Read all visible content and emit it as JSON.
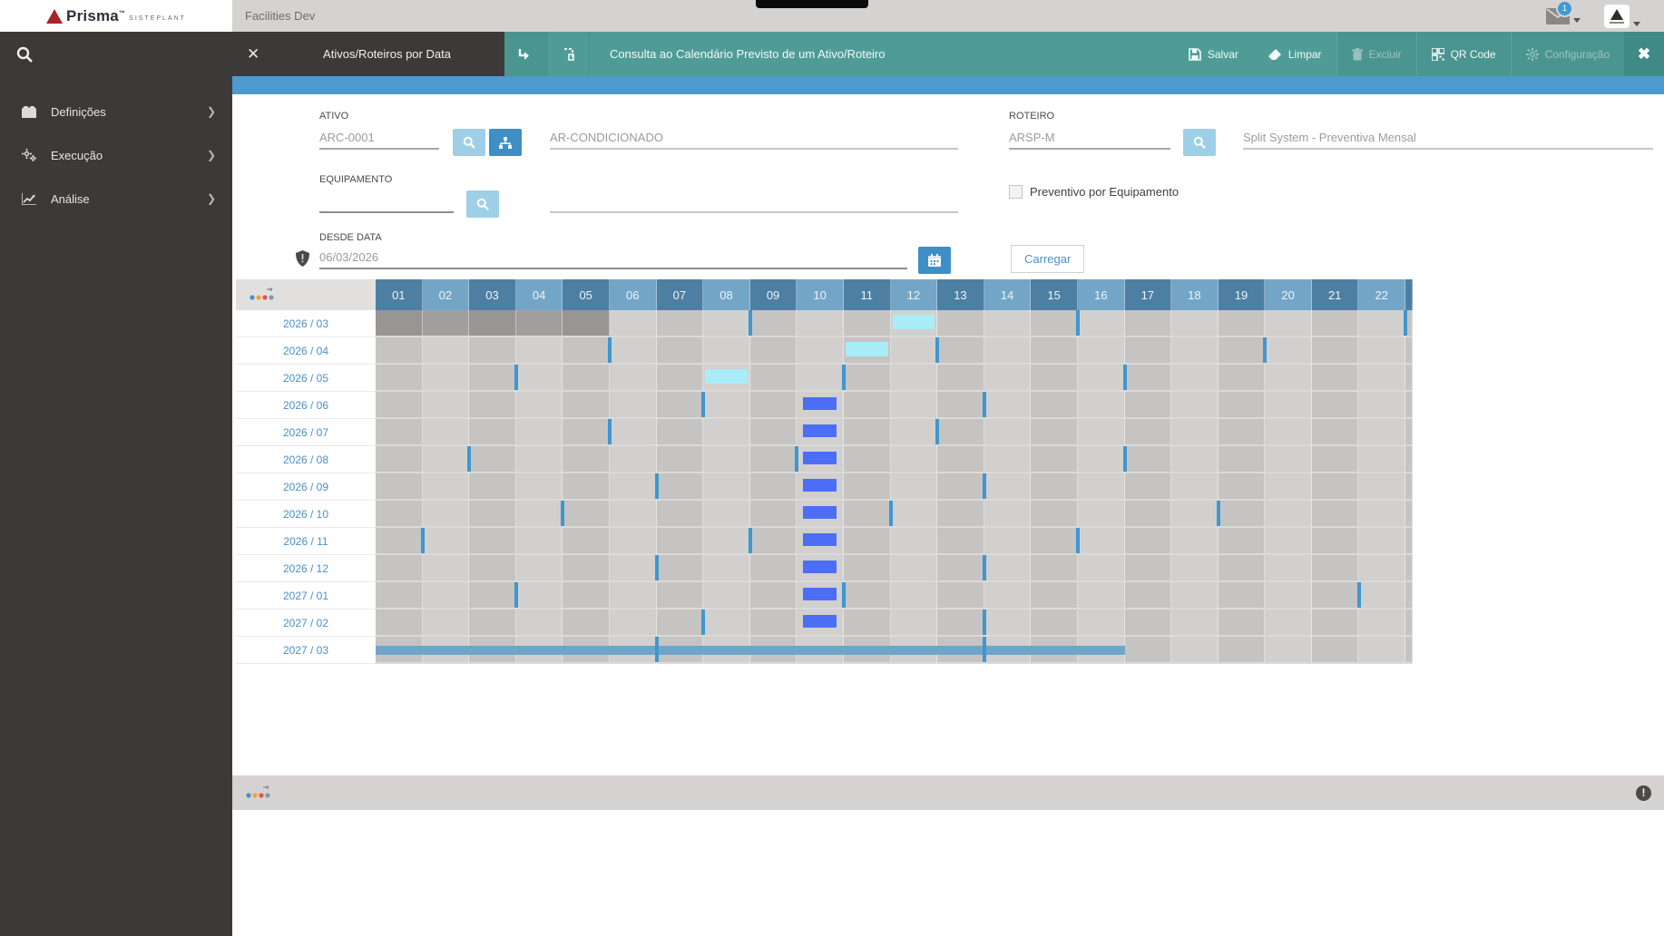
{
  "topbar": {
    "app_label": "Facilities Dev",
    "mail_badge": "1"
  },
  "logo": {
    "brand": "Prisma",
    "tm": "™",
    "subbrand": "SISTEPLANT"
  },
  "sidebar": {
    "items": [
      {
        "label": "Definições",
        "icon": "modules-icon"
      },
      {
        "label": "Execução",
        "icon": "gears-icon"
      },
      {
        "label": "Análise",
        "icon": "chart-line-icon"
      }
    ]
  },
  "toolbar": {
    "tab": "Ativos/Roteiros por Data",
    "title": "Consulta ao Calendário Previsto de um Ativo/Roteiro",
    "buttons": [
      {
        "label": "Salvar",
        "icon": "save-icon",
        "enabled": true
      },
      {
        "label": "Limpar",
        "icon": "eraser-icon",
        "enabled": true
      },
      {
        "label": "Excluir",
        "icon": "trash-icon",
        "enabled": false
      },
      {
        "label": "QR Code",
        "icon": "qr-code-icon",
        "enabled": true
      },
      {
        "label": "Configuração",
        "icon": "gear-icon",
        "enabled": false
      }
    ]
  },
  "form": {
    "ativo": {
      "label": "ATIVO",
      "code": "ARC-0001",
      "description": "AR-CONDICIONADO"
    },
    "equipamento": {
      "label": "EQUIPAMENTO",
      "code": "",
      "description": ""
    },
    "desde_data": {
      "label": "DESDE DATA",
      "value": "06/03/2026"
    },
    "roteiro": {
      "label": "ROTEIRO",
      "code": "ARSP-M",
      "description": "Split System - Preventiva Mensal"
    },
    "checkbox_label": "Preventivo por Equipamento",
    "load_button": "Carregar"
  },
  "calendar": {
    "days": [
      "01",
      "02",
      "03",
      "04",
      "05",
      "06",
      "07",
      "08",
      "09",
      "10",
      "11",
      "12",
      "13",
      "14",
      "15",
      "16",
      "17",
      "18",
      "19",
      "20",
      "21",
      "22"
    ],
    "rows": [
      {
        "label": "2026 / 03",
        "past_to": 5,
        "cyan": 12,
        "markers": [
          8,
          15,
          22
        ]
      },
      {
        "label": "2026 / 04",
        "cyan": 11,
        "markers": [
          5,
          12,
          19
        ]
      },
      {
        "label": "2026 / 05",
        "cyan": 8,
        "markers": [
          3,
          10,
          16
        ]
      },
      {
        "label": "2026 / 06",
        "bar": 10,
        "markers": [
          7,
          13
        ]
      },
      {
        "label": "2026 / 07",
        "bar": 10,
        "markers": [
          5,
          12
        ]
      },
      {
        "label": "2026 / 08",
        "bar": 10,
        "markers": [
          2,
          9,
          16
        ]
      },
      {
        "label": "2026 / 09",
        "bar": 10,
        "markers": [
          6,
          13
        ]
      },
      {
        "label": "2026 / 10",
        "bar": 10,
        "markers": [
          4,
          11,
          18
        ]
      },
      {
        "label": "2026 / 11",
        "bar": 10,
        "markers": [
          1,
          8,
          15
        ]
      },
      {
        "label": "2026 / 12",
        "bar": 10,
        "markers": [
          6,
          13
        ]
      },
      {
        "label": "2027 / 01",
        "bar": 10,
        "markers": [
          3,
          10,
          21
        ]
      },
      {
        "label": "2027 / 02",
        "bar": 10,
        "markers": [
          7,
          13
        ]
      },
      {
        "label": "2027 / 03",
        "longbar_end": 16,
        "markers": [
          6,
          13
        ]
      }
    ],
    "legend": {
      "cyan_color": "#a8edf8",
      "bar_color": "#4c6ef5",
      "marker_color": "#3e97cf",
      "longbar_color": "#6fa5c8",
      "header_dark": "#4d7fa3",
      "header_light": "#73a6c6",
      "past_cell": "#9d9b99"
    }
  },
  "theme": {
    "teal": "#4f9c96",
    "blue_strip": "#4e9ace",
    "link_blue": "#4a90c8",
    "sidebar_dark": "#3b3a38",
    "topbar_gray": "#d5d3d1"
  }
}
